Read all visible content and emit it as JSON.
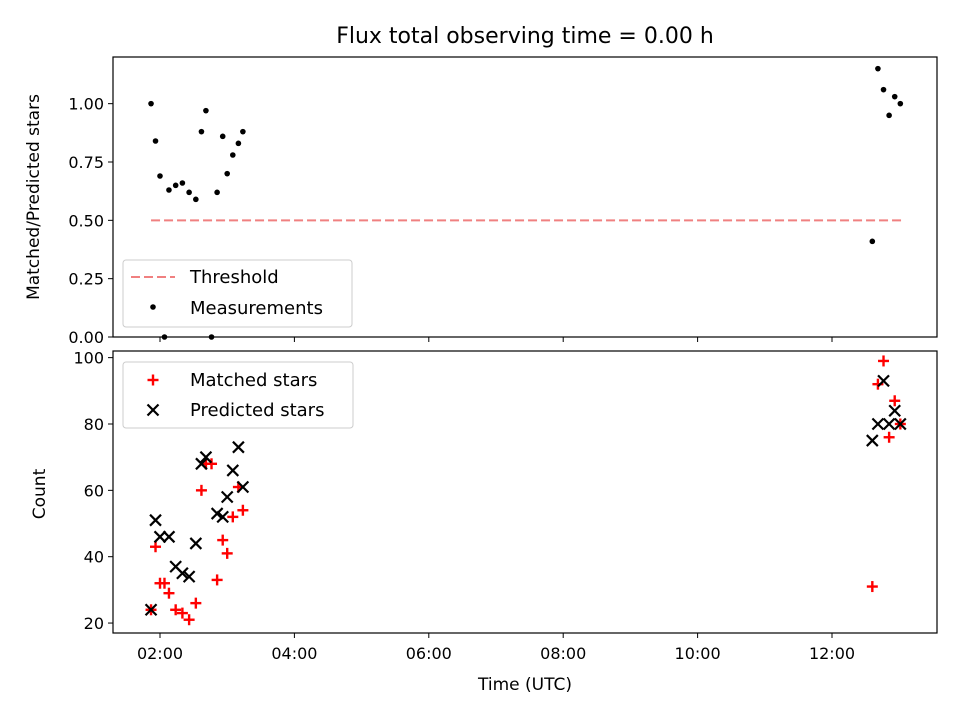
{
  "title": "Flux total observing time = 0.00 h",
  "colors": {
    "threshold": "#f08080",
    "matched": "#ff0000",
    "predicted": "#000000",
    "measurement": "#000000"
  },
  "chart_data": [
    {
      "type": "scatter",
      "ylabel": "Matched/Predicted stars",
      "ylim": [
        0,
        1.2
      ],
      "yticks": [
        "0.00",
        "0.25",
        "0.50",
        "0.75",
        "1.00"
      ],
      "grid": false,
      "legend_position": "lower-left",
      "legend": [
        "Threshold",
        "Measurements"
      ],
      "threshold": {
        "name": "Threshold",
        "value": 0.5,
        "x_range": [
          "01:52",
          "13:02"
        ]
      },
      "series": [
        {
          "name": "Measurements",
          "points": [
            [
              "01:52",
              1.0
            ],
            [
              "01:56",
              0.84
            ],
            [
              "02:00",
              0.69
            ],
            [
              "02:04",
              0.0
            ],
            [
              "02:08",
              0.63
            ],
            [
              "02:14",
              0.65
            ],
            [
              "02:20",
              0.66
            ],
            [
              "02:26",
              0.62
            ],
            [
              "02:32",
              0.59
            ],
            [
              "02:37",
              0.88
            ],
            [
              "02:41",
              0.97
            ],
            [
              "02:46",
              0.0
            ],
            [
              "02:51",
              0.62
            ],
            [
              "02:56",
              0.86
            ],
            [
              "03:00",
              0.7
            ],
            [
              "03:05",
              0.78
            ],
            [
              "03:10",
              0.83
            ],
            [
              "03:14",
              0.88
            ],
            [
              "12:36",
              0.41
            ],
            [
              "12:41",
              1.15
            ],
            [
              "12:46",
              1.06
            ],
            [
              "12:51",
              0.95
            ],
            [
              "12:56",
              1.03
            ],
            [
              "13:01",
              1.0
            ]
          ]
        }
      ]
    },
    {
      "type": "scatter",
      "xlabel": "Time (UTC)",
      "ylabel": "Count",
      "ylim": [
        17,
        102
      ],
      "yticks": [
        "20",
        "40",
        "60",
        "80",
        "100"
      ],
      "xticks": [
        "02:00",
        "04:00",
        "06:00",
        "08:00",
        "10:00",
        "12:00"
      ],
      "grid": false,
      "legend_position": "upper-left",
      "legend": [
        "Matched stars",
        "Predicted stars"
      ],
      "series": [
        {
          "name": "Matched stars",
          "points": [
            [
              "01:52",
              24
            ],
            [
              "01:56",
              43
            ],
            [
              "02:00",
              32
            ],
            [
              "02:04",
              32
            ],
            [
              "02:08",
              29
            ],
            [
              "02:14",
              24
            ],
            [
              "02:20",
              23
            ],
            [
              "02:26",
              21
            ],
            [
              "02:32",
              26
            ],
            [
              "02:37",
              60
            ],
            [
              "02:41",
              68
            ],
            [
              "02:46",
              68
            ],
            [
              "02:51",
              33
            ],
            [
              "02:56",
              45
            ],
            [
              "03:00",
              41
            ],
            [
              "03:05",
              52
            ],
            [
              "03:10",
              61
            ],
            [
              "03:14",
              54
            ],
            [
              "12:36",
              31
            ],
            [
              "12:41",
              92
            ],
            [
              "12:46",
              99
            ],
            [
              "12:51",
              76
            ],
            [
              "12:56",
              87
            ],
            [
              "13:01",
              80
            ]
          ]
        },
        {
          "name": "Predicted stars",
          "points": [
            [
              "01:52",
              24
            ],
            [
              "01:56",
              51
            ],
            [
              "02:00",
              46
            ],
            [
              "02:08",
              46
            ],
            [
              "02:14",
              37
            ],
            [
              "02:20",
              35
            ],
            [
              "02:26",
              34
            ],
            [
              "02:32",
              44
            ],
            [
              "02:37",
              68
            ],
            [
              "02:41",
              70
            ],
            [
              "02:51",
              53
            ],
            [
              "02:56",
              52
            ],
            [
              "03:00",
              58
            ],
            [
              "03:05",
              66
            ],
            [
              "03:10",
              73
            ],
            [
              "03:14",
              61
            ],
            [
              "12:36",
              75
            ],
            [
              "12:41",
              80
            ],
            [
              "12:46",
              93
            ],
            [
              "12:51",
              80
            ],
            [
              "12:56",
              84
            ],
            [
              "13:01",
              80
            ]
          ]
        }
      ]
    }
  ]
}
